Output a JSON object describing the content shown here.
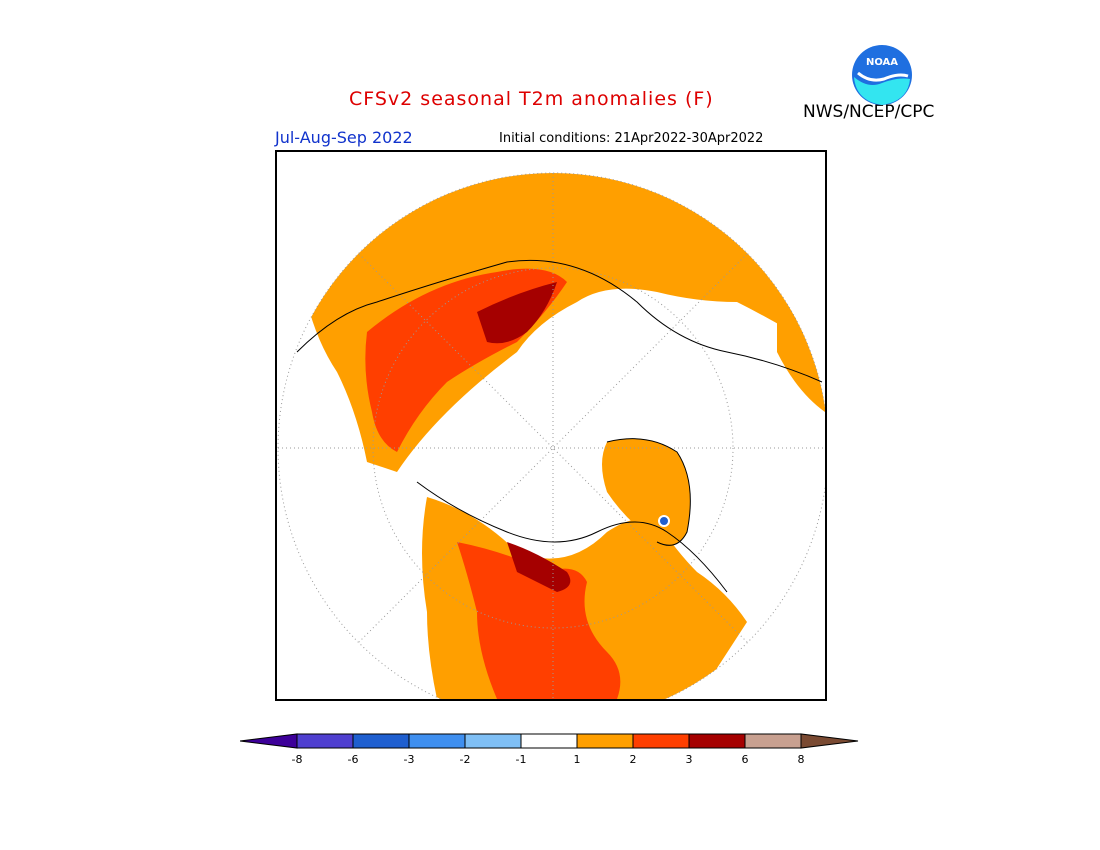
{
  "header": {
    "title": "CFSv2 seasonal T2m anomalies (F)",
    "period": "Jul-Aug-Sep 2022",
    "initial_conditions": "Initial conditions: 21Apr2022-30Apr2022",
    "agency": "NWS/NCEP/CPC",
    "logo_text": "NOAA"
  },
  "map": {
    "projection": "polar-stereographic-north",
    "colors": {
      "band_1_2": "#ff9f00",
      "band_2_3": "#ff3f00",
      "band_3_6": "#a50000",
      "band_6_8": "#c8a090",
      "land_outline": "#000000"
    }
  },
  "legend": {
    "labels": [
      "-8",
      "-6",
      "-3",
      "-2",
      "-1",
      "1",
      "2",
      "3",
      "6",
      "8"
    ],
    "colors": [
      "#3d0099",
      "#4f3fcf",
      "#1f5fcf",
      "#3f8fef",
      "#7fbff5",
      "#ffffff",
      "#ff9f00",
      "#ff3f00",
      "#a50000",
      "#c8a090",
      "#7a4a32"
    ]
  }
}
